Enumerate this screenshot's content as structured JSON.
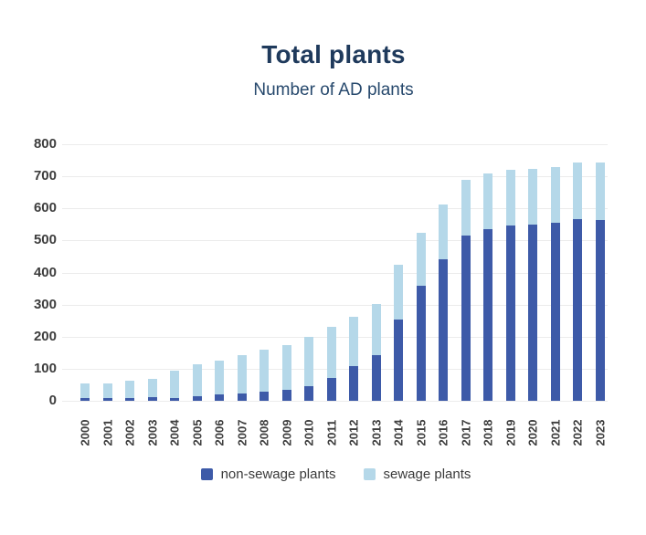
{
  "header": {
    "title": "Total plants",
    "subtitle": "Number of AD plants"
  },
  "colors": {
    "non_sewage_bar": "#3d5aa8",
    "sewage_bar": "#b5d8e9",
    "title_text": "#1f3a5c",
    "axis_text": "#3d3d3d",
    "gridline": "#ececec",
    "background": "#ffffff"
  },
  "chart_data": {
    "type": "bar",
    "stacked": true,
    "title": "Total plants",
    "subtitle": "Number of AD plants",
    "categories": [
      "2000",
      "2001",
      "2002",
      "2003",
      "2004",
      "2005",
      "2006",
      "2007",
      "2008",
      "2009",
      "2010",
      "2011",
      "2012",
      "2013",
      "2014",
      "2015",
      "2016",
      "2017",
      "2018",
      "2019",
      "2020",
      "2021",
      "2022",
      "2023"
    ],
    "series": [
      {
        "name": "non-sewage plants",
        "color": "#3d5aa8",
        "values": [
          8,
          8,
          10,
          11,
          9,
          13,
          19,
          23,
          28,
          35,
          47,
          71,
          109,
          143,
          253,
          360,
          442,
          516,
          535,
          548,
          549,
          554,
          566,
          565
        ]
      },
      {
        "name": "sewage plants",
        "color": "#b5d8e9",
        "values": [
          45,
          45,
          53,
          57,
          84,
          102,
          106,
          120,
          132,
          140,
          153,
          159,
          152,
          160,
          170,
          163,
          171,
          174,
          173,
          173,
          173,
          176,
          177,
          178
        ]
      }
    ],
    "stacked_totals": [
      53,
      53,
      63,
      68,
      93,
      115,
      125,
      143,
      160,
      175,
      200,
      230,
      261,
      303,
      423,
      523,
      613,
      690,
      708,
      721,
      722,
      730,
      743,
      743
    ],
    "xlabel": "",
    "ylabel": "",
    "ylim": [
      0,
      800
    ],
    "yticks": [
      0,
      100,
      200,
      300,
      400,
      500,
      600,
      700,
      800
    ],
    "grid": true,
    "legend_position": "bottom"
  }
}
